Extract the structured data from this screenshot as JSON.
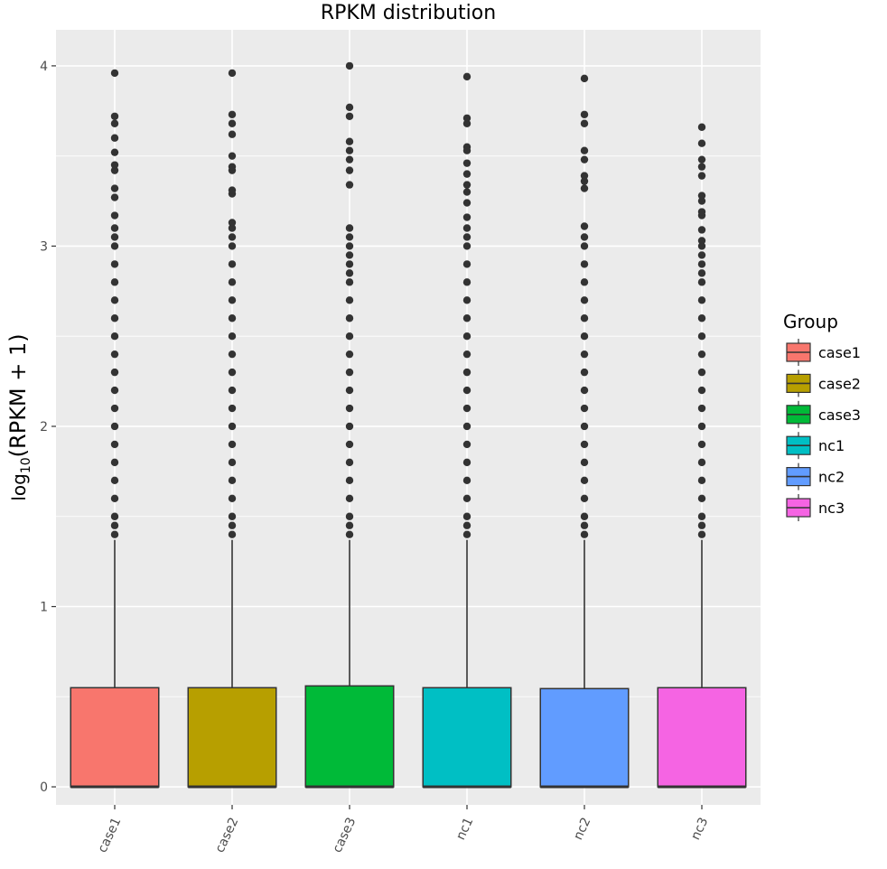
{
  "chart_data": {
    "type": "boxplot",
    "title": "RPKM distribution",
    "xlabel": "",
    "ylabel": {
      "prefix": "log",
      "subscript": "10",
      "body": "(RPKM + 1)"
    },
    "ylim": [
      -0.1,
      4.2
    ],
    "yticks": [
      0,
      1,
      2,
      3,
      4
    ],
    "categories": [
      "case1",
      "case2",
      "case3",
      "nc1",
      "nc2",
      "nc3"
    ],
    "grid": true,
    "legend": {
      "title": "Group",
      "position": "right",
      "entries": [
        "case1",
        "case2",
        "case3",
        "nc1",
        "nc2",
        "nc3"
      ]
    },
    "series": [
      {
        "name": "case1",
        "color": "#F8766D",
        "q1": 0,
        "median": 0,
        "q3": 0.55,
        "whisker_low": 0,
        "whisker_high": 1.37,
        "outliers": [
          1.4,
          1.45,
          1.5,
          1.6,
          1.7,
          1.8,
          1.9,
          2.0,
          2.1,
          2.2,
          2.3,
          2.4,
          2.5,
          2.6,
          2.7,
          2.8,
          2.9,
          3.0,
          3.05,
          3.1,
          3.17,
          3.27,
          3.32,
          3.42,
          3.45,
          3.52,
          3.6,
          3.68,
          3.72,
          3.96
        ]
      },
      {
        "name": "case2",
        "color": "#B79F00",
        "q1": 0,
        "median": 0,
        "q3": 0.55,
        "whisker_low": 0,
        "whisker_high": 1.37,
        "outliers": [
          1.4,
          1.45,
          1.5,
          1.6,
          1.7,
          1.8,
          1.9,
          2.0,
          2.1,
          2.2,
          2.3,
          2.4,
          2.5,
          2.6,
          2.7,
          2.8,
          2.9,
          3.0,
          3.05,
          3.1,
          3.13,
          3.29,
          3.31,
          3.42,
          3.44,
          3.5,
          3.62,
          3.68,
          3.73,
          3.96
        ]
      },
      {
        "name": "case3",
        "color": "#00BA38",
        "q1": 0,
        "median": 0,
        "q3": 0.56,
        "whisker_low": 0,
        "whisker_high": 1.37,
        "outliers": [
          1.4,
          1.45,
          1.5,
          1.6,
          1.7,
          1.8,
          1.9,
          2.0,
          2.1,
          2.2,
          2.3,
          2.4,
          2.5,
          2.6,
          2.7,
          2.8,
          2.85,
          2.9,
          2.95,
          3.0,
          3.05,
          3.1,
          3.34,
          3.42,
          3.48,
          3.53,
          3.58,
          3.72,
          3.77,
          4.0
        ]
      },
      {
        "name": "nc1",
        "color": "#00BFC4",
        "q1": 0,
        "median": 0,
        "q3": 0.55,
        "whisker_low": 0,
        "whisker_high": 1.37,
        "outliers": [
          1.4,
          1.45,
          1.5,
          1.6,
          1.7,
          1.8,
          1.9,
          2.0,
          2.1,
          2.2,
          2.3,
          2.4,
          2.5,
          2.6,
          2.7,
          2.8,
          2.9,
          3.0,
          3.05,
          3.1,
          3.16,
          3.24,
          3.3,
          3.34,
          3.4,
          3.46,
          3.53,
          3.55,
          3.68,
          3.71,
          3.94
        ]
      },
      {
        "name": "nc2",
        "color": "#619CFF",
        "q1": 0,
        "median": 0,
        "q3": 0.545,
        "whisker_low": 0,
        "whisker_high": 1.37,
        "outliers": [
          1.4,
          1.45,
          1.5,
          1.6,
          1.7,
          1.8,
          1.9,
          2.0,
          2.1,
          2.2,
          2.3,
          2.4,
          2.5,
          2.6,
          2.7,
          2.8,
          2.9,
          3.0,
          3.05,
          3.11,
          3.32,
          3.36,
          3.39,
          3.48,
          3.53,
          3.68,
          3.73,
          3.93
        ]
      },
      {
        "name": "nc3",
        "color": "#F564E3",
        "q1": 0,
        "median": 0,
        "q3": 0.55,
        "whisker_low": 0,
        "whisker_high": 1.37,
        "outliers": [
          1.4,
          1.45,
          1.5,
          1.6,
          1.7,
          1.8,
          1.9,
          2.0,
          2.1,
          2.2,
          2.3,
          2.4,
          2.5,
          2.6,
          2.7,
          2.8,
          2.85,
          2.9,
          2.95,
          3.0,
          3.03,
          3.09,
          3.17,
          3.19,
          3.25,
          3.28,
          3.39,
          3.44,
          3.48,
          3.57,
          3.66
        ]
      }
    ]
  }
}
